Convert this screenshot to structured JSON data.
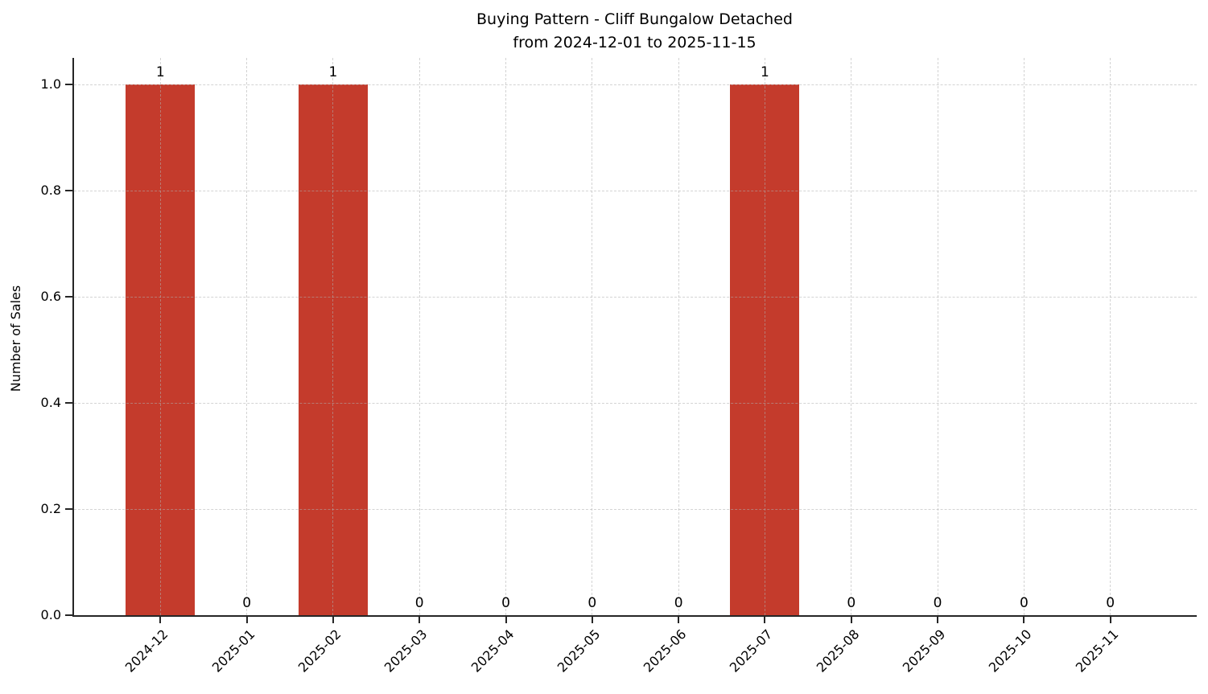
{
  "header": {
    "title_line1": "Buying Pattern - Cliff Bungalow Detached",
    "title_line2": "from 2024-12-01 to 2025-11-15"
  },
  "colors": {
    "bar": "#c43b2c",
    "axis": "#262626",
    "grid": "#afafaf",
    "text": "#000000",
    "background": "#ffffff"
  },
  "chart_data": {
    "type": "bar",
    "title": "Buying Pattern - Cliff Bungalow Detached\nfrom 2024-12-01 to 2025-11-15",
    "xlabel": "",
    "ylabel": "Number of Sales",
    "categories": [
      "2024-12",
      "2025-01",
      "2025-02",
      "2025-03",
      "2025-04",
      "2025-05",
      "2025-06",
      "2025-07",
      "2025-08",
      "2025-09",
      "2025-10",
      "2025-11"
    ],
    "values": [
      1,
      0,
      1,
      0,
      0,
      0,
      0,
      1,
      0,
      0,
      0,
      0
    ],
    "bar_labels": [
      "1",
      "0",
      "1",
      "0",
      "0",
      "0",
      "0",
      "1",
      "0",
      "0",
      "0",
      "0"
    ],
    "yticks": [
      0.0,
      0.2,
      0.4,
      0.6,
      0.8,
      1.0
    ],
    "ytick_labels": [
      "0.0",
      "0.2",
      "0.4",
      "0.6",
      "0.8",
      "1.0"
    ],
    "ylim": [
      0,
      1.05
    ],
    "grid": true,
    "grid_style": "dashed",
    "legend": false,
    "bar_color": "#c43b2c",
    "x_label_rotation_deg": 45
  }
}
